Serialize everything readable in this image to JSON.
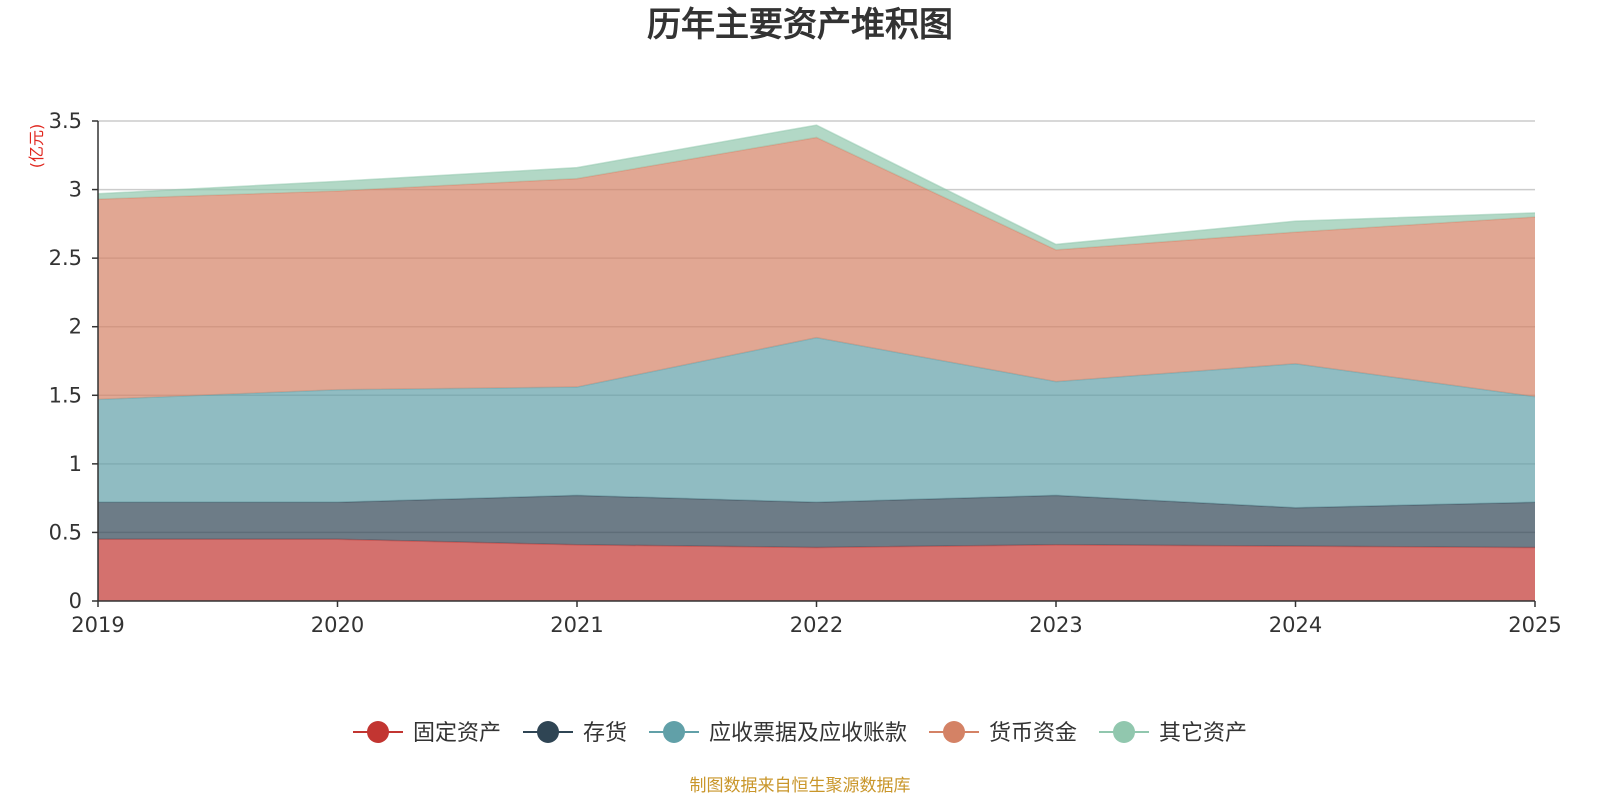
{
  "chart_data": {
    "type": "area",
    "stacked": true,
    "title": "历年主要资产堆积图",
    "unit_label": "(亿元)",
    "source": "制图数据来自恒生聚源数据库",
    "x": [
      "2019",
      "2020",
      "2021",
      "2022",
      "2023",
      "2024",
      "2025"
    ],
    "ylim": [
      0,
      3.5
    ],
    "yticks": [
      "0",
      "0.5",
      "1",
      "1.5",
      "2",
      "2.5",
      "3",
      "3.5"
    ],
    "grid": true,
    "legend_position": "bottom",
    "series": [
      {
        "name": "固定资产",
        "color": "#c23531",
        "values": [
          0.45,
          0.45,
          0.41,
          0.39,
          0.41,
          0.4,
          0.39
        ]
      },
      {
        "name": "存货",
        "color": "#2f4554",
        "values": [
          0.27,
          0.27,
          0.36,
          0.33,
          0.36,
          0.28,
          0.33
        ]
      },
      {
        "name": "应收票据及应收账款",
        "color": "#61a0a8",
        "values": [
          0.75,
          0.82,
          0.79,
          1.2,
          0.83,
          1.05,
          0.77
        ]
      },
      {
        "name": "货币资金",
        "color": "#d48265",
        "values": [
          1.46,
          1.45,
          1.52,
          1.46,
          0.96,
          0.96,
          1.31
        ]
      },
      {
        "name": "其它资产",
        "color": "#91c7ae",
        "values": [
          0.04,
          0.07,
          0.08,
          0.09,
          0.04,
          0.08,
          0.03
        ]
      }
    ]
  }
}
